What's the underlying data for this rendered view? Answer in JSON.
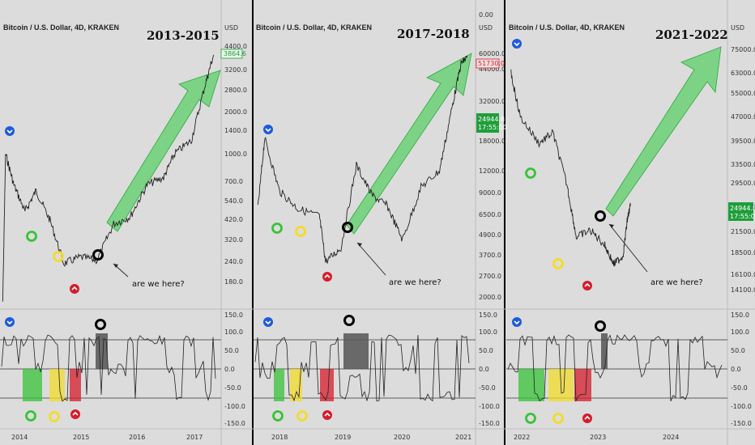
{
  "chart_data": [
    {
      "type": "line",
      "title": "Bitcoin / U.S. Dollar, 4D, KRAKEN",
      "era": "2013-2015",
      "currency": "USD",
      "x_ticks": [
        "2014",
        "2015",
        "2016",
        "2017"
      ],
      "y_ticks": [
        "4400.0",
        "3200.0",
        "2800.0",
        "2000.0",
        "1400.0",
        "1000.0",
        "700.0",
        "540.0",
        "420.0",
        "320.0",
        "240.0",
        "180.0"
      ],
      "price_tag": "3864.6",
      "annotation": "are we here?",
      "osc_ticks": [
        "150.0",
        "100.0",
        "50.0",
        "0.0",
        "-50.0",
        "-100.0",
        "-150.0"
      ],
      "log_scale": true,
      "price_path": [
        [
          2013.9,
          130
        ],
        [
          2013.95,
          1000
        ],
        [
          2014.1,
          650
        ],
        [
          2014.3,
          450
        ],
        [
          2014.5,
          600
        ],
        [
          2014.75,
          400
        ],
        [
          2015.0,
          220
        ],
        [
          2015.3,
          240
        ],
        [
          2015.6,
          230
        ],
        [
          2015.9,
          380
        ],
        [
          2016.2,
          420
        ],
        [
          2016.5,
          650
        ],
        [
          2016.8,
          720
        ],
        [
          2017.0,
          1000
        ],
        [
          2017.3,
          1200
        ],
        [
          2017.55,
          2600
        ],
        [
          2017.7,
          3900
        ]
      ]
    },
    {
      "type": "line",
      "title": "Bitcoin / U.S. Dollar, 4D, KRAKEN",
      "era": "2017-2018",
      "currency": "USD",
      "x_ticks": [
        "2018",
        "2019",
        "2020",
        "2021"
      ],
      "y_ticks": [
        "0.00",
        "60000.0",
        "44000.0",
        "32000.0",
        "18000.0",
        "12000.0",
        "9000.0",
        "6500.0",
        "4900.0",
        "3700.0",
        "2700.0",
        "2000.0"
      ],
      "price_tag": "51730.0",
      "price_tag_2": "24944.8",
      "countdown": "17:55:00",
      "annotation": "are we here?",
      "osc_ticks": [
        "150.0",
        "100.0",
        "50.0",
        "0.0",
        "-50.0",
        "-100.0",
        "-150.0"
      ],
      "log_scale": true,
      "price_path": [
        [
          2017.85,
          7000
        ],
        [
          2017.96,
          19000
        ],
        [
          2018.2,
          9000
        ],
        [
          2018.5,
          7000
        ],
        [
          2018.85,
          6300
        ],
        [
          2018.95,
          3300
        ],
        [
          2019.2,
          4000
        ],
        [
          2019.45,
          13000
        ],
        [
          2019.7,
          8500
        ],
        [
          2019.95,
          7300
        ],
        [
          2020.2,
          4500
        ],
        [
          2020.5,
          9500
        ],
        [
          2020.8,
          12000
        ],
        [
          2021.0,
          29000
        ],
        [
          2021.15,
          55000
        ],
        [
          2021.25,
          60000
        ]
      ]
    },
    {
      "type": "line",
      "title": "Bitcoin / U.S. Dollar, 4D, KRAKEN",
      "era": "2021-2022",
      "currency": "USD",
      "x_ticks": [
        "2022",
        "2023",
        "2024"
      ],
      "y_ticks": [
        "75000.0",
        "63000.0",
        "55000.0",
        "47000.0",
        "39500.0",
        "33500.0",
        "29500.0",
        "24944.8",
        "21500.0",
        "18500.0",
        "16100.0",
        "14100.0"
      ],
      "price_tag": "24944.8",
      "countdown": "17:55:00",
      "annotation": "are we here?",
      "osc_ticks": [
        "150.0",
        "100.0",
        "50.0",
        "0.0",
        "-50.0",
        "-100.0",
        "-150.0"
      ],
      "log_scale": true,
      "price_path": [
        [
          2021.85,
          64000
        ],
        [
          2021.95,
          47000
        ],
        [
          2022.15,
          39000
        ],
        [
          2022.3,
          42000
        ],
        [
          2022.45,
          29000
        ],
        [
          2022.55,
          20000
        ],
        [
          2022.7,
          21000
        ],
        [
          2022.85,
          19000
        ],
        [
          2022.95,
          16500
        ],
        [
          2023.05,
          17500
        ],
        [
          2023.1,
          23000
        ],
        [
          2023.13,
          24944.8
        ]
      ]
    }
  ],
  "colors": {
    "background": "#dcdcdc",
    "price_line": "#222222",
    "arrow": "#2ecc40",
    "marker_top": "#1e5bd8",
    "marker_green": "#37c337",
    "marker_yellow": "#f2dc2a",
    "marker_red": "#d61c2b",
    "marker_black": "#000000",
    "tag_green": "#1f9e3a",
    "tag_red": "#d61c2b"
  }
}
